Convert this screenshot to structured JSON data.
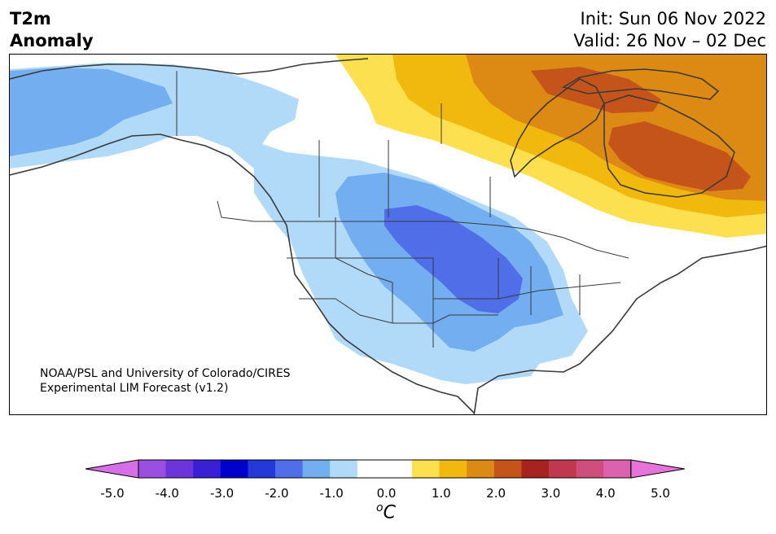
{
  "title": {
    "left_line1": "T2m",
    "left_line2": "Anomaly",
    "init": "Init: Sun 06 Nov 2022",
    "valid": "Valid: 26 Nov – 02 Dec"
  },
  "credit": {
    "line1": "NOAA/PSL and University of Colorado/CIRES",
    "line2": "Experimental LIM Forecast (v1.2)"
  },
  "colorbar": {
    "unit_sup": "o",
    "unit": "C",
    "ticks": [
      "-5.0",
      "-4.0",
      "-3.0",
      "-2.0",
      "-1.0",
      "0.0",
      "1.0",
      "2.0",
      "3.0",
      "4.0",
      "5.0"
    ],
    "extend": "both",
    "colors": [
      "#d66fe6",
      "#9a4fe0",
      "#6a35da",
      "#3a20d4",
      "#0000cc",
      "#2538d8",
      "#4f6ee8",
      "#72aef0",
      "#b0daf8",
      "#ffffff",
      "#ffffff",
      "#fde050",
      "#f1b80e",
      "#dd8a14",
      "#c5541a",
      "#a82222",
      "#c0384e",
      "#d04e7c",
      "#dc62b0",
      "#e674d8"
    ]
  },
  "map": {
    "region": "North America",
    "variable": "2m temperature anomaly",
    "colors": {
      "cool_light": "#b0daf8",
      "cool_mid": "#72aef0",
      "cool_strong": "#4f6ee8",
      "warm_light": "#fde050",
      "warm_mid": "#f1b80e",
      "warm_strong": "#dd8a14",
      "warm_max": "#c5541a",
      "coast": "#3a3a3a"
    }
  }
}
